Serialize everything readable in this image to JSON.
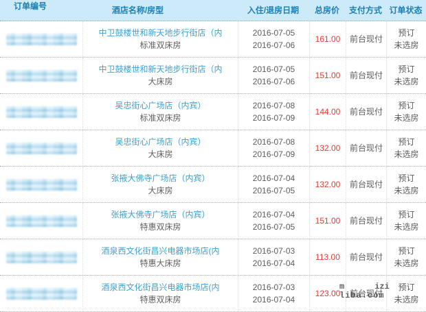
{
  "table": {
    "columns": {
      "order_no": "订单编号",
      "hotel": "酒店名称/房型",
      "dates": "入住/退房日期",
      "price": "总房价",
      "payment": "支付方式",
      "status": "订单状态"
    },
    "rows": [
      {
        "hotel": "中卫鼓楼世和新天地步行街店（内",
        "room": "标准双床房",
        "checkin": "2016-07-05",
        "checkout": "2016-07-06",
        "price": "161.00",
        "payment": "前台现付",
        "status1": "预订",
        "status2": "未选房"
      },
      {
        "hotel": "中卫鼓楼世和新天地步行街店（内",
        "room": "大床房",
        "checkin": "2016-07-05",
        "checkout": "2016-07-06",
        "price": "151.00",
        "payment": "前台现付",
        "status1": "预订",
        "status2": "未选房"
      },
      {
        "hotel": "吴忠街心广场店（内宾）",
        "room": "标准双床房",
        "checkin": "2016-07-08",
        "checkout": "2016-07-09",
        "price": "144.00",
        "payment": "前台现付",
        "status1": "预订",
        "status2": "未选房"
      },
      {
        "hotel": "吴忠街心广场店（内宾）",
        "room": "大床房",
        "checkin": "2016-07-08",
        "checkout": "2016-07-09",
        "price": "132.00",
        "payment": "前台现付",
        "status1": "预订",
        "status2": "未选房"
      },
      {
        "hotel": "张掖大佛寺广场店（内宾）",
        "room": "大床房",
        "checkin": "2016-07-04",
        "checkout": "2016-07-05",
        "price": "132.00",
        "payment": "前台现付",
        "status1": "预订",
        "status2": "未选房"
      },
      {
        "hotel": "张掖大佛寺广场店（内宾）",
        "room": "特惠双床房",
        "checkin": "2016-07-04",
        "checkout": "2016-07-05",
        "price": "151.00",
        "payment": "前台现付",
        "status1": "预订",
        "status2": "未选房"
      },
      {
        "hotel": "酒泉西文化街昌兴电器市场店(内",
        "room": "特惠大床房",
        "checkin": "2016-07-03",
        "checkout": "2016-07-04",
        "price": "113.00",
        "payment": "前台现付",
        "status1": "预订",
        "status2": "未选房"
      },
      {
        "hotel": "酒泉西文化街昌兴电器市场店(内",
        "room": "特惠双床房",
        "checkin": "2016-07-03",
        "checkout": "2016-07-04",
        "price": "123.00",
        "payment": "前台现付",
        "status1": "预订",
        "status2": "未选房"
      }
    ]
  },
  "watermark": {
    "fragment_left": "m",
    "fragment_right": "izi",
    "site": "liba.com"
  },
  "colors": {
    "header_bg": "#cdeaf8",
    "header_text": "#1b7fb6",
    "hotel_link": "#3ba1d2",
    "price_red": "#e8382e",
    "body_text": "#5c5c5c"
  }
}
